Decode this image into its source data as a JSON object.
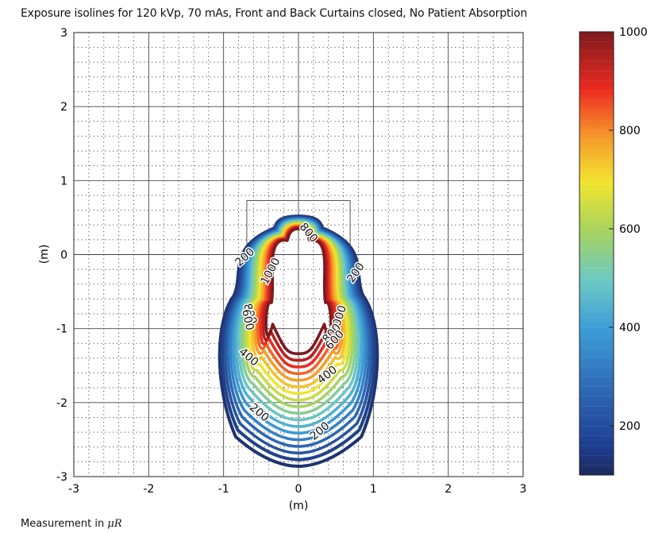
{
  "chart_data": {
    "type": "contour",
    "title": "Exposure isolines for 120 kVp, 70 mAs, Front and Back Curtains closed, No Patient Absorption",
    "xlabel": "(m)",
    "ylabel": "(m)",
    "xlim": [
      -3,
      3
    ],
    "ylim": [
      -3,
      3
    ],
    "xticks": [
      -3,
      -2,
      -1,
      0,
      1,
      2,
      3
    ],
    "yticks": [
      -3,
      -2,
      -1,
      0,
      1,
      2,
      3
    ],
    "grid": "major solid, minor dotted",
    "colorbar": {
      "range": [
        100,
        1000
      ],
      "ticks": [
        200,
        400,
        600,
        800,
        1000
      ],
      "colormap": "jet"
    },
    "contour_labels": [
      {
        "text": "200",
        "x": -0.72,
        "y": -0.03,
        "angle": -42
      },
      {
        "text": "1000",
        "x": -0.38,
        "y": -0.22,
        "angle": -62
      },
      {
        "text": "800",
        "x": 0.14,
        "y": 0.3,
        "angle": 50
      },
      {
        "text": "200",
        "x": 0.76,
        "y": -0.24,
        "angle": -55
      },
      {
        "text": "800",
        "x": -0.64,
        "y": -0.8,
        "angle": 72
      },
      {
        "text": "600",
        "x": -0.67,
        "y": -0.88,
        "angle": 78
      },
      {
        "text": "1000",
        "x": 0.53,
        "y": -0.87,
        "angle": -72
      },
      {
        "text": "800",
        "x": 0.44,
        "y": -1.06,
        "angle": -48
      },
      {
        "text": "600",
        "x": 0.48,
        "y": -1.15,
        "angle": -48
      },
      {
        "text": "400",
        "x": -0.66,
        "y": -1.38,
        "angle": 40
      },
      {
        "text": "400",
        "x": 0.38,
        "y": -1.62,
        "angle": -38
      },
      {
        "text": "200",
        "x": -0.52,
        "y": -2.13,
        "angle": 40
      },
      {
        "text": "200",
        "x": 0.28,
        "y": -2.38,
        "angle": -40
      }
    ]
  },
  "footer": {
    "prefix": "Measurement in",
    "unit": "μR"
  }
}
